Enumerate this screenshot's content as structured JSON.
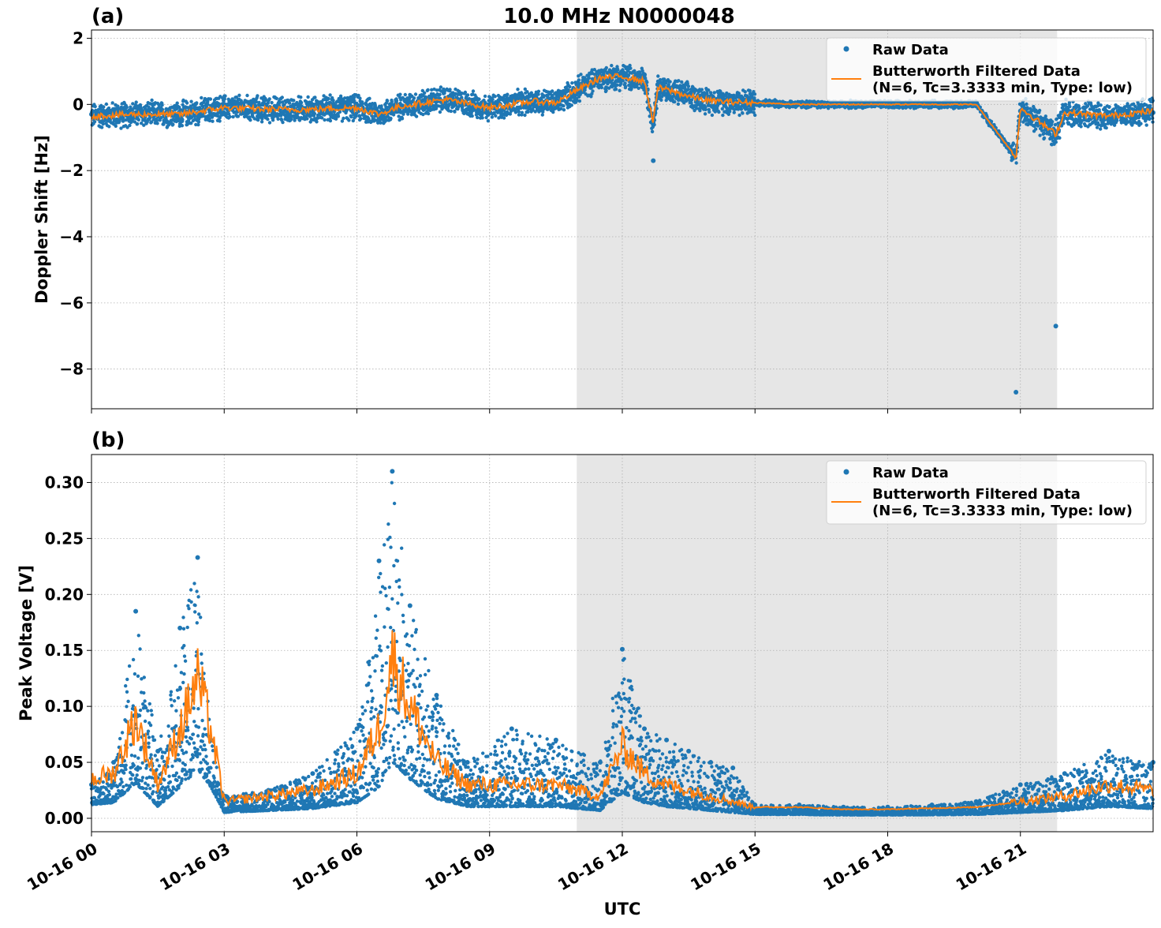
{
  "figure_title": "10.0 MHz N0000048",
  "xlabel": "UTC",
  "legend": {
    "raw": "Raw Data",
    "filtered_line1": "Butterworth Filtered Data",
    "filtered_line2": "(N=6, Tc=3.3333 min, Type: low)"
  },
  "colors": {
    "raw": "#1f77b4",
    "filtered": "#ff7f0e",
    "shade": "#e6e6e6"
  },
  "chart_data": [
    {
      "type": "scatter",
      "panel_label": "(a)",
      "title": "10.0 MHz N0000048",
      "ylabel": "Doppler Shift [Hz]",
      "xlabel": "",
      "x_unit": "hours UTC on 10-16",
      "xlim": [
        0,
        24
      ],
      "ylim": [
        -9.2,
        2.25
      ],
      "x_ticks": [
        0,
        3,
        6,
        9,
        12,
        15,
        18,
        21
      ],
      "x_tick_labels": [
        "10-16 00",
        "10-16 03",
        "10-16 06",
        "10-16 09",
        "10-16 12",
        "10-16 15",
        "10-16 18",
        "10-16 21"
      ],
      "y_ticks": [
        2,
        0,
        -2,
        -4,
        -6,
        -8
      ],
      "y_tick_labels": [
        "2",
        "0",
        "−2",
        "−4",
        "−6",
        "−8"
      ],
      "shaded_region": [
        10.97,
        21.83
      ],
      "series": [
        {
          "name": "Raw Data",
          "style": "points",
          "x": [
            0,
            1,
            2,
            3,
            4,
            5,
            6,
            6.5,
            7,
            8,
            9,
            10,
            10.5,
            11,
            11.5,
            12,
            12.5,
            12.7,
            12.8,
            13,
            13.5,
            14,
            15,
            16,
            18,
            20,
            20.9,
            21,
            21.8,
            22,
            23,
            24
          ],
          "y": [
            -0.3,
            -0.25,
            -0.3,
            -0.1,
            -0.15,
            -0.1,
            -0.1,
            -0.35,
            -0.05,
            0.15,
            -0.1,
            0.15,
            0.05,
            0.6,
            1.0,
            1.0,
            0.9,
            -1.7,
            0.6,
            0.5,
            0.3,
            0.15,
            0.05,
            0.0,
            0.0,
            0.0,
            -8.7,
            -0.2,
            -6.7,
            -0.3,
            -0.4,
            -0.25
          ]
        },
        {
          "name": "Butterworth Filtered Data",
          "style": "line",
          "x": [
            0,
            1,
            2,
            3,
            4,
            5,
            6,
            6.5,
            7,
            8,
            9,
            10,
            10.5,
            11,
            11.5,
            12,
            12.5,
            12.7,
            12.8,
            13,
            13.5,
            14,
            15,
            16,
            18,
            20,
            20.9,
            21,
            21.8,
            22,
            23,
            24
          ],
          "y": [
            -0.35,
            -0.3,
            -0.3,
            -0.1,
            -0.15,
            -0.15,
            -0.1,
            -0.3,
            -0.05,
            0.15,
            -0.1,
            0.1,
            0.05,
            0.45,
            0.8,
            0.85,
            0.7,
            -0.55,
            0.5,
            0.45,
            0.25,
            0.1,
            0.05,
            0.0,
            0.0,
            0.0,
            -1.6,
            -0.1,
            -0.9,
            -0.25,
            -0.35,
            -0.2
          ]
        }
      ]
    },
    {
      "type": "scatter",
      "panel_label": "(b)",
      "title": "",
      "ylabel": "Peak Voltage [V]",
      "xlabel": "UTC",
      "x_unit": "hours UTC on 10-16",
      "xlim": [
        0,
        24
      ],
      "ylim": [
        -0.012,
        0.325
      ],
      "x_ticks": [
        0,
        3,
        6,
        9,
        12,
        15,
        18,
        21
      ],
      "x_tick_labels": [
        "10-16 00",
        "10-16 03",
        "10-16 06",
        "10-16 09",
        "10-16 12",
        "10-16 15",
        "10-16 18",
        "10-16 21"
      ],
      "y_ticks": [
        0.0,
        0.05,
        0.1,
        0.15,
        0.2,
        0.25,
        0.3
      ],
      "y_tick_labels": [
        "0.00",
        "0.05",
        "0.10",
        "0.15",
        "0.20",
        "0.25",
        "0.30"
      ],
      "shaded_region": [
        10.97,
        21.83
      ],
      "series": [
        {
          "name": "Raw Data",
          "style": "points",
          "x": [
            0,
            0.5,
            1.0,
            1.5,
            2.0,
            2.4,
            2.7,
            3.0,
            4.0,
            5.0,
            6.0,
            6.5,
            6.8,
            7.2,
            7.8,
            8.5,
            9.5,
            10.5,
            11.5,
            12.0,
            12.5,
            13.0,
            13.5,
            14.0,
            14.5,
            15.0,
            16.0,
            17.0,
            18.0,
            19.0,
            20.0,
            21.0,
            22.0,
            23.0,
            24.0
          ],
          "y": [
            0.03,
            0.05,
            0.185,
            0.06,
            0.17,
            0.233,
            0.07,
            0.02,
            0.025,
            0.04,
            0.08,
            0.23,
            0.31,
            0.19,
            0.11,
            0.05,
            0.08,
            0.07,
            0.05,
            0.151,
            0.08,
            0.07,
            0.06,
            0.05,
            0.045,
            0.012,
            0.012,
            0.01,
            0.01,
            0.012,
            0.015,
            0.03,
            0.04,
            0.06,
            0.05
          ]
        },
        {
          "name": "Butterworth Filtered Data",
          "style": "line",
          "x": [
            0,
            0.5,
            1.0,
            1.5,
            2.0,
            2.4,
            2.7,
            3.0,
            4.0,
            5.0,
            6.0,
            6.5,
            6.8,
            7.2,
            7.8,
            8.5,
            9.5,
            10.5,
            11.5,
            12.0,
            12.5,
            13.0,
            13.5,
            14.0,
            14.5,
            15.0,
            16.0,
            17.0,
            18.0,
            19.0,
            20.0,
            21.0,
            22.0,
            23.0,
            24.0
          ],
          "y": [
            0.035,
            0.04,
            0.09,
            0.03,
            0.08,
            0.125,
            0.08,
            0.015,
            0.02,
            0.025,
            0.04,
            0.08,
            0.145,
            0.1,
            0.05,
            0.03,
            0.03,
            0.03,
            0.02,
            0.065,
            0.04,
            0.03,
            0.025,
            0.02,
            0.015,
            0.01,
            0.01,
            0.008,
            0.008,
            0.009,
            0.01,
            0.015,
            0.02,
            0.03,
            0.025
          ]
        }
      ]
    }
  ]
}
